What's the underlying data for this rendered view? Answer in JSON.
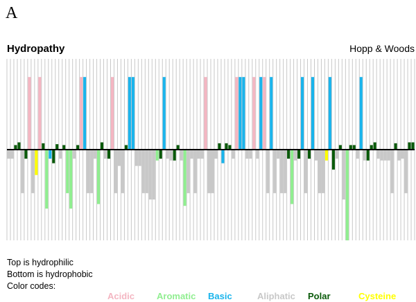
{
  "panel_label": "A",
  "colors": {
    "Acidic": "#f4b6c2",
    "Aromatic": "#90ee90",
    "Basic": "#1ab4ec",
    "Aliphatic": "#c8c8c8",
    "Polar": "#0a5a0a",
    "Cysteine": "#ffff00"
  },
  "chart_data": {
    "type": "bar",
    "title": "Hydropathy",
    "method": "Hopp & Woods",
    "ylim": [
      -1,
      1
    ],
    "grid": true,
    "values": [
      -0.1,
      -0.1,
      0.05,
      0.08,
      -0.48,
      -0.1,
      0.8,
      -0.48,
      -0.28,
      0.8,
      0.07,
      -0.65,
      -0.1,
      -0.15,
      0.06,
      -0.1,
      0.05,
      -0.48,
      -0.65,
      -0.1,
      0.05,
      0.8,
      0.8,
      -0.48,
      -0.48,
      -0.1,
      -0.6,
      0.08,
      -0.1,
      -0.1,
      0.8,
      -0.48,
      -0.18,
      -0.48,
      0.05,
      0.8,
      0.8,
      -0.18,
      -0.18,
      -0.48,
      -0.48,
      -0.55,
      -0.55,
      -0.12,
      -0.1,
      0.8,
      -0.1,
      -0.12,
      -0.12,
      0.05,
      -0.12,
      -0.62,
      -0.48,
      -0.1,
      -0.48,
      -0.1,
      -0.1,
      0.8,
      -0.48,
      -0.48,
      -0.1,
      0.07,
      -0.15,
      0.07,
      0.05,
      -0.1,
      0.8,
      0.8,
      0.8,
      -0.1,
      -0.1,
      0.8,
      -0.1,
      0.8,
      0.8,
      -0.48,
      0.8,
      -0.48,
      -0.1,
      -0.48,
      -0.48,
      -0.1,
      -0.6,
      -0.12,
      -0.1,
      0.8,
      -0.48,
      -0.1,
      0.8,
      -0.12,
      -0.48,
      -0.48,
      -0.12,
      0.8,
      -0.22,
      -0.1,
      0.05,
      -0.55,
      -1.0,
      0.05,
      0.05,
      -0.1,
      0.8,
      -0.12,
      -0.12,
      0.05,
      0.08,
      -0.1,
      -0.12,
      -0.12,
      -0.12,
      -0.48,
      0.07,
      -0.12,
      -0.1,
      -0.48,
      0.08,
      0.08
    ],
    "classes": [
      "Aliphatic",
      "Aliphatic",
      "Polar",
      "Polar",
      "Aliphatic",
      "Polar",
      "Acidic",
      "Aliphatic",
      "Cysteine",
      "Acidic",
      "Polar",
      "Aromatic",
      "Basic",
      "Polar",
      "Polar",
      "Aliphatic",
      "Polar",
      "Aromatic",
      "Aromatic",
      "Aliphatic",
      "Polar",
      "Acidic",
      "Basic",
      "Aliphatic",
      "Aliphatic",
      "Aliphatic",
      "Aromatic",
      "Polar",
      "Aliphatic",
      "Polar",
      "Acidic",
      "Aliphatic",
      "Aliphatic",
      "Aliphatic",
      "Polar",
      "Basic",
      "Basic",
      "Aliphatic",
      "Aliphatic",
      "Aliphatic",
      "Aliphatic",
      "Aliphatic",
      "Aliphatic",
      "Aromatic",
      "Polar",
      "Basic",
      "Aliphatic",
      "Aliphatic",
      "Polar",
      "Polar",
      "Aliphatic",
      "Aromatic",
      "Aliphatic",
      "Aliphatic",
      "Aliphatic",
      "Aliphatic",
      "Aliphatic",
      "Acidic",
      "Aliphatic",
      "Aliphatic",
      "Aliphatic",
      "Polar",
      "Basic",
      "Polar",
      "Polar",
      "Aliphatic",
      "Acidic",
      "Basic",
      "Basic",
      "Aliphatic",
      "Aliphatic",
      "Acidic",
      "Aliphatic",
      "Basic",
      "Acidic",
      "Aliphatic",
      "Basic",
      "Aliphatic",
      "Aliphatic",
      "Aliphatic",
      "Aliphatic",
      "Polar",
      "Aromatic",
      "Aliphatic",
      "Polar",
      "Basic",
      "Aliphatic",
      "Polar",
      "Basic",
      "Aliphatic",
      "Aliphatic",
      "Aliphatic",
      "Cysteine",
      "Basic",
      "Polar",
      "Aliphatic",
      "Polar",
      "Aliphatic",
      "Aromatic",
      "Polar",
      "Polar",
      "Aliphatic",
      "Basic",
      "Aliphatic",
      "Polar",
      "Polar",
      "Polar",
      "Aliphatic",
      "Aliphatic",
      "Aliphatic",
      "Aliphatic",
      "Aliphatic",
      "Polar",
      "Aliphatic",
      "Aliphatic",
      "Aliphatic",
      "Polar",
      "Polar"
    ]
  },
  "captions": {
    "line1": "Top is hydrophilic",
    "line2": "Bottom is hydrophobic",
    "line3": "Color codes:"
  },
  "legend": [
    {
      "key": "Acidic",
      "label": "Acidic"
    },
    {
      "key": "Aromatic",
      "label": "Aromatic"
    },
    {
      "key": "Basic",
      "label": "Basic"
    },
    {
      "key": "Aliphatic",
      "label": "Aliphatic"
    },
    {
      "key": "Polar",
      "label": "Polar"
    },
    {
      "key": "Cysteine",
      "label": "Cysteine"
    }
  ]
}
